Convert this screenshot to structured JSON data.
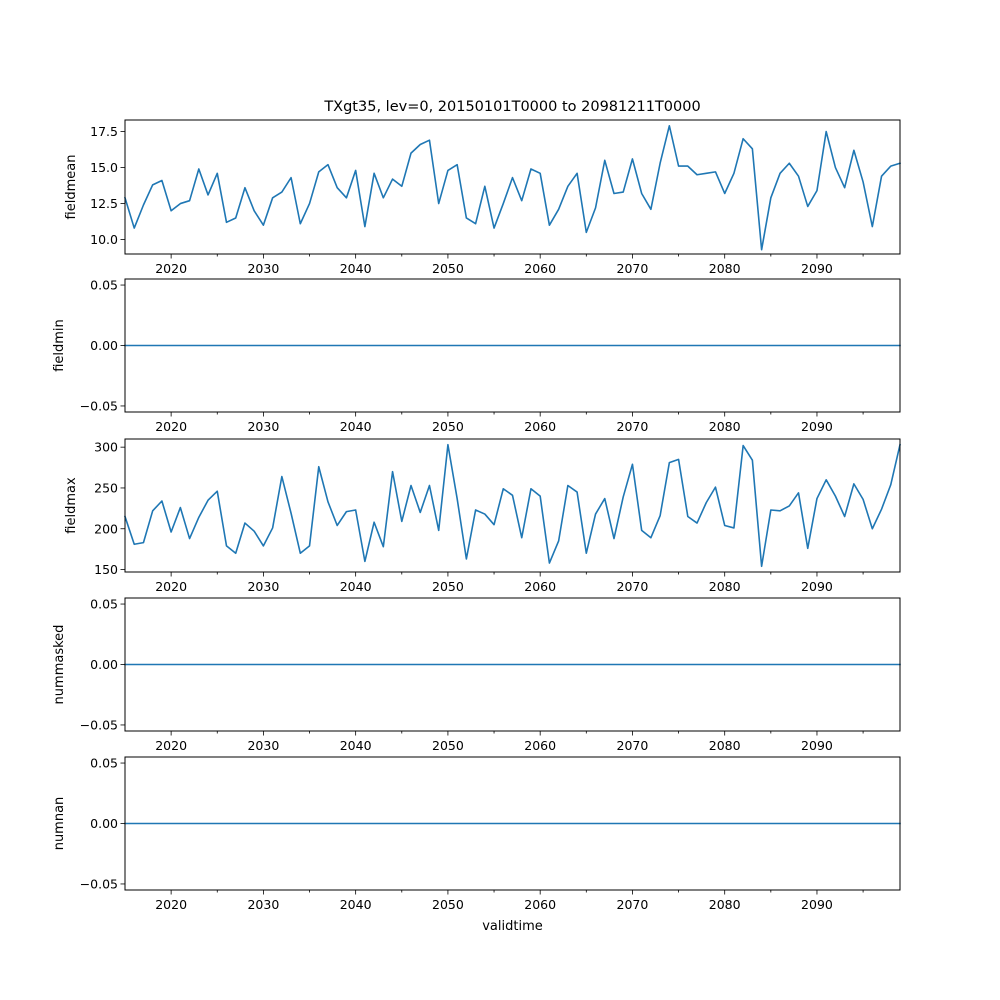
{
  "chart_data": {
    "type": "line",
    "title": "TXgt35, lev=0, 20150101T0000 to 20981211T0000",
    "xlabel": "validtime",
    "x_range": [
      2015,
      2099
    ],
    "x_ticks": [
      2020,
      2030,
      2040,
      2050,
      2060,
      2070,
      2080,
      2090
    ],
    "x_tick_labels": [
      "2020",
      "2030",
      "2040",
      "2050",
      "2060",
      "2070",
      "2080",
      "2090"
    ],
    "x_minor_ticks": [
      2025,
      2035,
      2045,
      2055,
      2065,
      2075,
      2085,
      2095
    ],
    "line_color": "#1f77b4",
    "x": [
      2015,
      2016,
      2017,
      2018,
      2019,
      2020,
      2021,
      2022,
      2023,
      2024,
      2025,
      2026,
      2027,
      2028,
      2029,
      2030,
      2031,
      2032,
      2033,
      2034,
      2035,
      2036,
      2037,
      2038,
      2039,
      2040,
      2041,
      2042,
      2043,
      2044,
      2045,
      2046,
      2047,
      2048,
      2049,
      2050,
      2051,
      2052,
      2053,
      2054,
      2055,
      2056,
      2057,
      2058,
      2059,
      2060,
      2061,
      2062,
      2063,
      2064,
      2065,
      2066,
      2067,
      2068,
      2069,
      2070,
      2071,
      2072,
      2073,
      2074,
      2075,
      2076,
      2077,
      2078,
      2079,
      2080,
      2081,
      2082,
      2083,
      2084,
      2085,
      2086,
      2087,
      2088,
      2089,
      2090,
      2091,
      2092,
      2093,
      2094,
      2095,
      2096,
      2097,
      2098,
      2099
    ],
    "panels": [
      {
        "ylabel": "fieldmean",
        "ylim": [
          9.0,
          18.3
        ],
        "yticks": [
          10.0,
          12.5,
          15.0,
          17.5
        ],
        "ytick_labels": [
          "10.0",
          "12.5",
          "15.0",
          "17.5"
        ],
        "values": [
          12.9,
          10.8,
          12.4,
          13.8,
          14.1,
          12.0,
          12.5,
          12.7,
          14.9,
          13.1,
          14.6,
          11.2,
          11.5,
          13.6,
          12.0,
          11.0,
          12.9,
          13.3,
          14.3,
          11.1,
          12.5,
          14.7,
          15.2,
          13.6,
          12.9,
          14.8,
          10.9,
          14.6,
          12.9,
          14.2,
          13.7,
          16.0,
          16.6,
          16.9,
          12.5,
          14.8,
          15.2,
          11.5,
          11.1,
          13.7,
          10.8,
          12.5,
          14.3,
          12.7,
          14.9,
          14.6,
          11.0,
          12.1,
          13.7,
          14.6,
          10.5,
          12.2,
          15.5,
          13.2,
          13.3,
          15.6,
          13.2,
          12.1,
          15.3,
          17.9,
          15.1,
          15.1,
          14.5,
          14.6,
          14.7,
          13.2,
          14.6,
          17.0,
          16.3,
          9.3,
          12.9,
          14.6,
          15.3,
          14.4,
          12.3,
          13.4,
          17.5,
          15.0,
          13.6,
          16.2,
          14.0,
          10.9,
          14.4,
          15.1,
          15.3
        ]
      },
      {
        "ylabel": "fieldmin",
        "ylim": [
          -0.055,
          0.055
        ],
        "yticks": [
          -0.05,
          0.0,
          0.05
        ],
        "ytick_labels": [
          "−0.05",
          "0.00",
          "0.05"
        ],
        "values": [
          0,
          0,
          0,
          0,
          0,
          0,
          0,
          0,
          0,
          0,
          0,
          0,
          0,
          0,
          0,
          0,
          0,
          0,
          0,
          0,
          0,
          0,
          0,
          0,
          0,
          0,
          0,
          0,
          0,
          0,
          0,
          0,
          0,
          0,
          0,
          0,
          0,
          0,
          0,
          0,
          0,
          0,
          0,
          0,
          0,
          0,
          0,
          0,
          0,
          0,
          0,
          0,
          0,
          0,
          0,
          0,
          0,
          0,
          0,
          0,
          0,
          0,
          0,
          0,
          0,
          0,
          0,
          0,
          0,
          0,
          0,
          0,
          0,
          0,
          0,
          0,
          0,
          0,
          0,
          0,
          0,
          0,
          0,
          0,
          0
        ]
      },
      {
        "ylabel": "fieldmax",
        "ylim": [
          147,
          310
        ],
        "yticks": [
          150,
          200,
          250,
          300
        ],
        "ytick_labels": [
          "150",
          "200",
          "250",
          "300"
        ],
        "values": [
          215,
          181,
          183,
          222,
          234,
          196,
          226,
          188,
          214,
          235,
          246,
          179,
          170,
          207,
          197,
          179,
          201,
          264,
          219,
          170,
          179,
          276,
          233,
          204,
          221,
          223,
          160,
          208,
          178,
          270,
          209,
          253,
          220,
          253,
          198,
          303,
          237,
          163,
          223,
          218,
          205,
          249,
          241,
          189,
          249,
          240,
          158,
          185,
          253,
          245,
          170,
          218,
          237,
          188,
          239,
          279,
          198,
          189,
          216,
          281,
          285,
          215,
          207,
          232,
          251,
          204,
          201,
          302,
          284,
          154,
          223,
          222,
          228,
          244,
          176,
          237,
          260,
          240,
          215,
          255,
          236,
          200,
          224,
          254,
          303
        ]
      },
      {
        "ylabel": "nummasked",
        "ylim": [
          -0.055,
          0.055
        ],
        "yticks": [
          -0.05,
          0.0,
          0.05
        ],
        "ytick_labels": [
          "−0.05",
          "0.00",
          "0.05"
        ],
        "values": [
          0,
          0,
          0,
          0,
          0,
          0,
          0,
          0,
          0,
          0,
          0,
          0,
          0,
          0,
          0,
          0,
          0,
          0,
          0,
          0,
          0,
          0,
          0,
          0,
          0,
          0,
          0,
          0,
          0,
          0,
          0,
          0,
          0,
          0,
          0,
          0,
          0,
          0,
          0,
          0,
          0,
          0,
          0,
          0,
          0,
          0,
          0,
          0,
          0,
          0,
          0,
          0,
          0,
          0,
          0,
          0,
          0,
          0,
          0,
          0,
          0,
          0,
          0,
          0,
          0,
          0,
          0,
          0,
          0,
          0,
          0,
          0,
          0,
          0,
          0,
          0,
          0,
          0,
          0,
          0,
          0,
          0,
          0,
          0,
          0
        ]
      },
      {
        "ylabel": "numnan",
        "ylim": [
          -0.055,
          0.055
        ],
        "yticks": [
          -0.05,
          0.0,
          0.05
        ],
        "ytick_labels": [
          "−0.05",
          "0.00",
          "0.05"
        ],
        "values": [
          0,
          0,
          0,
          0,
          0,
          0,
          0,
          0,
          0,
          0,
          0,
          0,
          0,
          0,
          0,
          0,
          0,
          0,
          0,
          0,
          0,
          0,
          0,
          0,
          0,
          0,
          0,
          0,
          0,
          0,
          0,
          0,
          0,
          0,
          0,
          0,
          0,
          0,
          0,
          0,
          0,
          0,
          0,
          0,
          0,
          0,
          0,
          0,
          0,
          0,
          0,
          0,
          0,
          0,
          0,
          0,
          0,
          0,
          0,
          0,
          0,
          0,
          0,
          0,
          0,
          0,
          0,
          0,
          0,
          0,
          0,
          0,
          0,
          0,
          0,
          0,
          0,
          0,
          0,
          0,
          0,
          0,
          0,
          0,
          0
        ]
      }
    ]
  }
}
